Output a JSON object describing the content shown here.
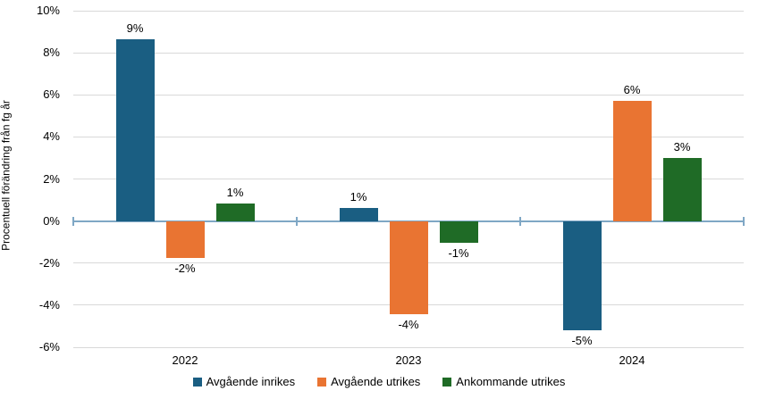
{
  "chart_data": {
    "type": "bar",
    "categories": [
      "2022",
      "2023",
      "2024"
    ],
    "series": [
      {
        "name": "Avgående inrikes",
        "color": "#1A5E82",
        "values": [
          8.65,
          0.6,
          -5.2
        ],
        "labels": [
          "9%",
          "1%",
          "-5%"
        ]
      },
      {
        "name": "Avgående utrikes",
        "color": "#E97432",
        "values": [
          -1.75,
          -4.45,
          5.7
        ],
        "labels": [
          "-2%",
          "-4%",
          "6%"
        ]
      },
      {
        "name": "Ankommande utrikes",
        "color": "#1F6B26",
        "values": [
          0.85,
          -1.05,
          3.0
        ],
        "labels": [
          "1%",
          "-1%",
          "3%"
        ]
      }
    ],
    "ylabel": "Procentuell förändring från fg år",
    "ylim": [
      -6,
      10
    ],
    "ytick_step": 2,
    "ytick_labels": [
      "10%",
      "8%",
      "6%",
      "4%",
      "2%",
      "0%",
      "-2%",
      "-4%",
      "-6%"
    ],
    "grid": true,
    "legend_position": "bottom",
    "colors": {
      "grid": "#D9D9D9",
      "zero_axis": "#7FA7C5",
      "text": "#000000",
      "background": "#FFFFFF"
    }
  }
}
